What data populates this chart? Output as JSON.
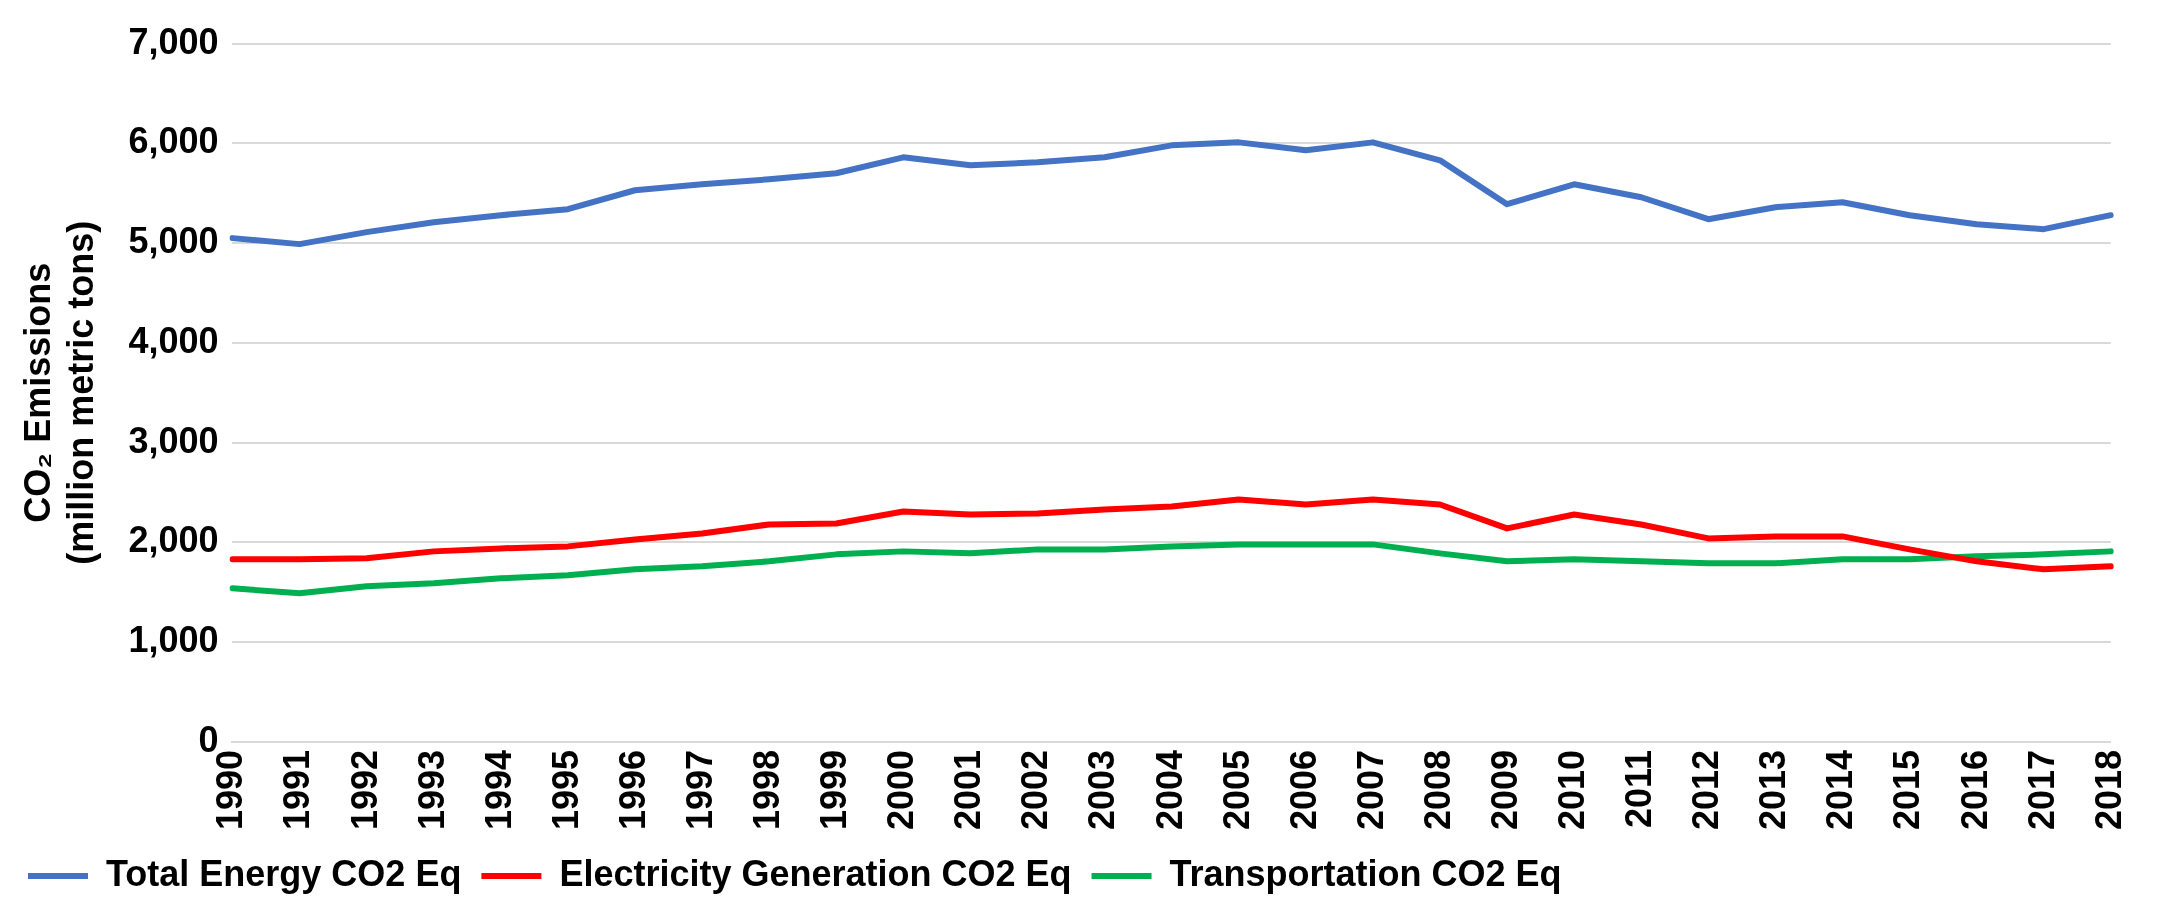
{
  "chart_data": {
    "type": "line",
    "ylabel": "CO₂ Emissions\n(million metric tons)",
    "categories": [
      "1990",
      "1991",
      "1992",
      "1993",
      "1994",
      "1995",
      "1996",
      "1997",
      "1998",
      "1999",
      "2000",
      "2001",
      "2002",
      "2003",
      "2004",
      "2005",
      "2006",
      "2007",
      "2008",
      "2009",
      "2010",
      "2011",
      "2012",
      "2013",
      "2014",
      "2015",
      "2016",
      "2017",
      "2018"
    ],
    "series": [
      {
        "name": "Total Energy CO2 Eq",
        "color": "#4472c4",
        "values": [
          5050,
          4990,
          5110,
          5210,
          5280,
          5340,
          5530,
          5590,
          5640,
          5700,
          5860,
          5780,
          5810,
          5860,
          5980,
          6010,
          5930,
          6010,
          5830,
          5390,
          5590,
          5460,
          5240,
          5360,
          5410,
          5280,
          5190,
          5140,
          5280
        ]
      },
      {
        "name": "Electricity Generation CO2 Eq",
        "color": "#ff0000",
        "values": [
          1830,
          1830,
          1840,
          1910,
          1940,
          1960,
          2030,
          2090,
          2180,
          2190,
          2310,
          2280,
          2290,
          2330,
          2360,
          2430,
          2380,
          2430,
          2380,
          2140,
          2280,
          2180,
          2040,
          2060,
          2060,
          1930,
          1810,
          1730,
          1760
        ]
      },
      {
        "name": "Transportation CO2 Eq",
        "color": "#00b050",
        "values": [
          1540,
          1490,
          1560,
          1590,
          1640,
          1670,
          1730,
          1760,
          1810,
          1880,
          1910,
          1890,
          1930,
          1930,
          1960,
          1980,
          1980,
          1980,
          1890,
          1810,
          1830,
          1810,
          1790,
          1790,
          1830,
          1830,
          1860,
          1880,
          1910
        ]
      }
    ],
    "ylim": [
      0,
      7000
    ],
    "yticks": [
      0,
      {
        "value": 1000,
        "label": "1,000"
      },
      {
        "value": 2000,
        "label": "2,000"
      },
      {
        "value": 3000,
        "label": "3,000"
      },
      {
        "value": 4000,
        "label": "4,000"
      },
      {
        "value": 5000,
        "label": "5,000"
      },
      {
        "value": 6000,
        "label": "6,000"
      },
      {
        "value": 7000,
        "label": "7,000"
      }
    ],
    "grid": "y",
    "legend": "bottom",
    "marker": "none",
    "line_style": "solid"
  }
}
